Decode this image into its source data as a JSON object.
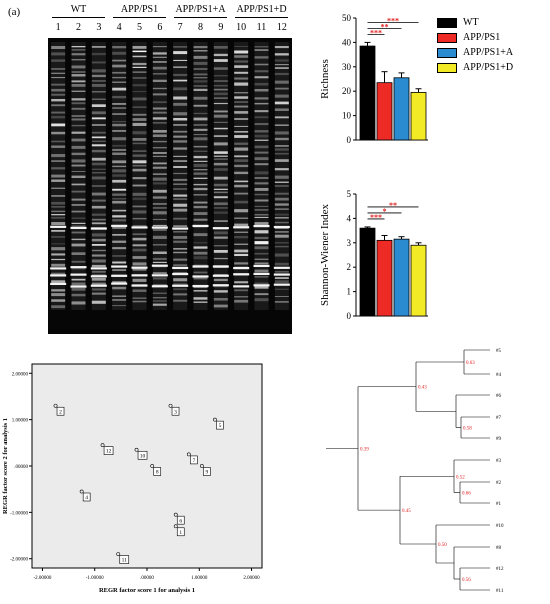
{
  "panel_label": "(a)",
  "gel": {
    "groups": [
      {
        "label": "WT",
        "lanes": [
          "1",
          "2",
          "3"
        ]
      },
      {
        "label": "APP/PS1",
        "lanes": [
          "4",
          "5",
          "6"
        ]
      },
      {
        "label": "APP/PS1+A",
        "lanes": [
          "7",
          "8",
          "9"
        ]
      },
      {
        "label": "APP/PS1+D",
        "lanes": [
          "10",
          "11",
          "12"
        ]
      }
    ]
  },
  "legend": [
    {
      "label": "WT",
      "color": "#000000"
    },
    {
      "label": "APP/PS1",
      "color": "#ee2a24"
    },
    {
      "label": "APP/PS1+A",
      "color": "#2a8bd0"
    },
    {
      "label": "APP/PS1+D",
      "color": "#f2ea24"
    }
  ],
  "chart_data": [
    {
      "type": "bar",
      "categories": [
        "WT",
        "APP/PS1",
        "APP/PS1+A",
        "APP/PS1+D"
      ],
      "values": [
        38.5,
        23.5,
        25.5,
        19.5
      ],
      "errors": [
        1.5,
        4.5,
        2.0,
        1.5
      ],
      "ylabel": "Richness",
      "ylim": [
        0,
        50
      ],
      "ticks": [
        "0",
        "10",
        "20",
        "30",
        "40",
        "50"
      ],
      "significance": [
        "***",
        "**",
        "***"
      ]
    },
    {
      "type": "bar",
      "categories": [
        "WT",
        "APP/PS1",
        "APP/PS1+A",
        "APP/PS1+D"
      ],
      "values": [
        3.6,
        3.1,
        3.15,
        2.9
      ],
      "errors": [
        0.05,
        0.2,
        0.1,
        0.1
      ],
      "ylabel": "Shannon-Wiener Index",
      "ylim": [
        0,
        5
      ],
      "ticks": [
        "0",
        "1",
        "2",
        "3",
        "4",
        "5"
      ],
      "significance": [
        "**",
        "*",
        "***"
      ]
    },
    {
      "type": "scatter",
      "xlabel": "REGR factor score  1 for analysis 1",
      "ylabel": "REGR factor score  2 for analysis 1",
      "xlim": [
        -2.2,
        2.2
      ],
      "ylim": [
        -2.2,
        2.2
      ],
      "xticks": [
        "-2.00000",
        "-1.00000",
        ".00000",
        "1.00000",
        "2.00000"
      ],
      "yticks": [
        "2.00000",
        "1.00000",
        ".00000",
        "-1.00000",
        "-2.00000"
      ],
      "points": [
        {
          "label": "2",
          "x": -1.75,
          "y": 1.3
        },
        {
          "label": "3",
          "x": 0.45,
          "y": 1.3
        },
        {
          "label": "5",
          "x": 1.3,
          "y": 1.0
        },
        {
          "label": "12",
          "x": -0.85,
          "y": 0.45
        },
        {
          "label": "10",
          "x": -0.2,
          "y": 0.35
        },
        {
          "label": "7",
          "x": 0.8,
          "y": 0.25
        },
        {
          "label": "8",
          "x": 0.1,
          "y": 0.0
        },
        {
          "label": "9",
          "x": 1.05,
          "y": 0.0
        },
        {
          "label": "4",
          "x": -1.25,
          "y": -0.55
        },
        {
          "label": "6",
          "x": 0.55,
          "y": -1.05
        },
        {
          "label": "1",
          "x": 0.55,
          "y": -1.3
        },
        {
          "label": "11",
          "x": -0.55,
          "y": -1.9
        }
      ]
    }
  ],
  "dendrogram": {
    "leaves": [
      "#5",
      "#4",
      "#6",
      "#7",
      "#9",
      "#3",
      "#2",
      "#1",
      "#10",
      "#8",
      "#12",
      "#11"
    ],
    "node_labels": [
      "0.39",
      "0.43",
      "0.63",
      "0.58",
      "0.52",
      "0.66",
      "0.45",
      "0.50",
      "0.56"
    ]
  }
}
